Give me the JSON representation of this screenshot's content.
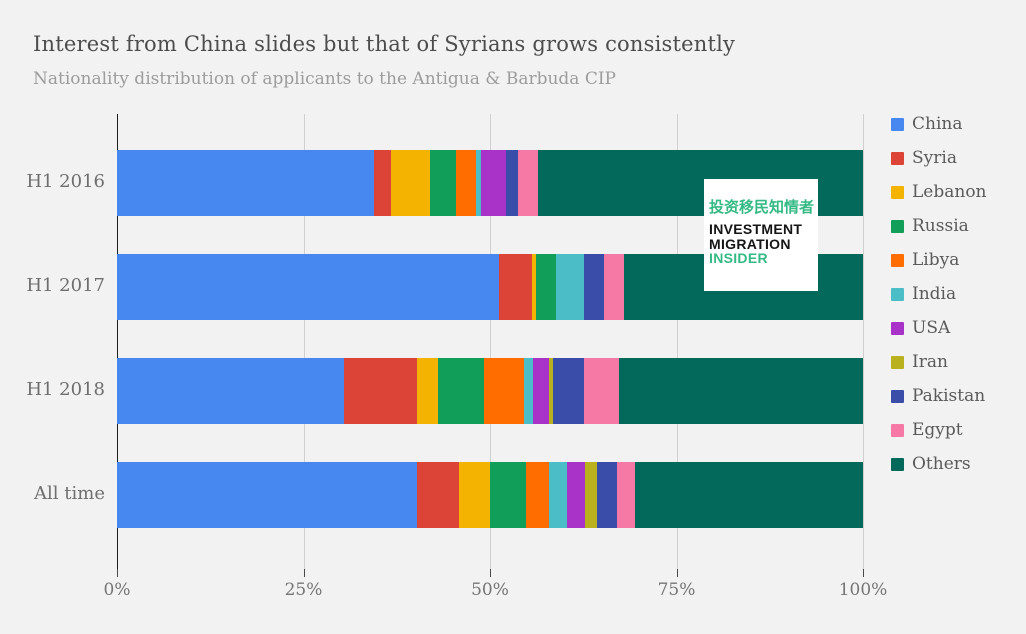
{
  "title": "Interest from China slides but that of Syrians grows consistently",
  "subtitle": "Nationality distribution of applicants to the Antigua & Barbuda CIP",
  "watermark": {
    "chinese": "投资移民知情者",
    "line1": "INVESTMENT",
    "line2": "MIGRATION",
    "line3": "INSIDER",
    "accent_color": "#36ba85"
  },
  "colors": {
    "background": "#f2f2f2",
    "axis_line": "#1e1e1e",
    "gridline": "#cfcfcf",
    "title_text": "#4c4c4c",
    "subtitle_text": "#9c9c9c",
    "category_label_text": "#6e6e6e",
    "tick_label_text": "#757575",
    "legend_label_text": "#5a5a5a"
  },
  "chart_data": {
    "type": "bar",
    "orientation": "horizontal",
    "stacked": true,
    "unit": "%",
    "title": "Interest from China slides but that of Syrians grows consistently",
    "subtitle": "Nationality distribution of applicants to the Antigua & Barbuda CIP",
    "xlabel": "",
    "ylabel": "",
    "xlim": [
      0,
      100
    ],
    "grid": true,
    "legend_position": "right",
    "categories": [
      "H1 2016",
      "H1 2017",
      "H1 2018",
      "All time"
    ],
    "x_ticks": [
      "0%",
      "25%",
      "50%",
      "75%",
      "100%"
    ],
    "x_tick_values": [
      0,
      25,
      50,
      75,
      100
    ],
    "series": [
      {
        "name": "China",
        "color": "#4687f0",
        "values": [
          34.5,
          51.2,
          30.4,
          40.2
        ]
      },
      {
        "name": "Syria",
        "color": "#db4437",
        "values": [
          2.2,
          4.4,
          9.8,
          5.6
        ]
      },
      {
        "name": "Lebanon",
        "color": "#f3b300",
        "values": [
          5.3,
          0.6,
          2.8,
          4.2
        ]
      },
      {
        "name": "Russia",
        "color": "#119e58",
        "values": [
          3.4,
          2.6,
          6.2,
          4.8
        ]
      },
      {
        "name": "Libya",
        "color": "#ff6d00",
        "values": [
          2.7,
          0,
          5.4,
          3.1
        ]
      },
      {
        "name": "India",
        "color": "#4abdc6",
        "values": [
          0.7,
          3.8,
          1.2,
          2.4
        ]
      },
      {
        "name": "USA",
        "color": "#a933c8",
        "values": [
          3.4,
          0,
          2.1,
          2.5
        ]
      },
      {
        "name": "Iran",
        "color": "#b9b21e",
        "values": [
          0,
          0,
          0.5,
          1.6
        ]
      },
      {
        "name": "Pakistan",
        "color": "#3a4da9",
        "values": [
          1.5,
          2.7,
          4.2,
          2.6
        ]
      },
      {
        "name": "Egypt",
        "color": "#f678a5",
        "values": [
          2.8,
          2.7,
          4.7,
          2.4
        ]
      },
      {
        "name": "Others",
        "color": "#036a5b",
        "values": [
          43.5,
          32.0,
          32.7,
          30.6
        ]
      }
    ]
  }
}
